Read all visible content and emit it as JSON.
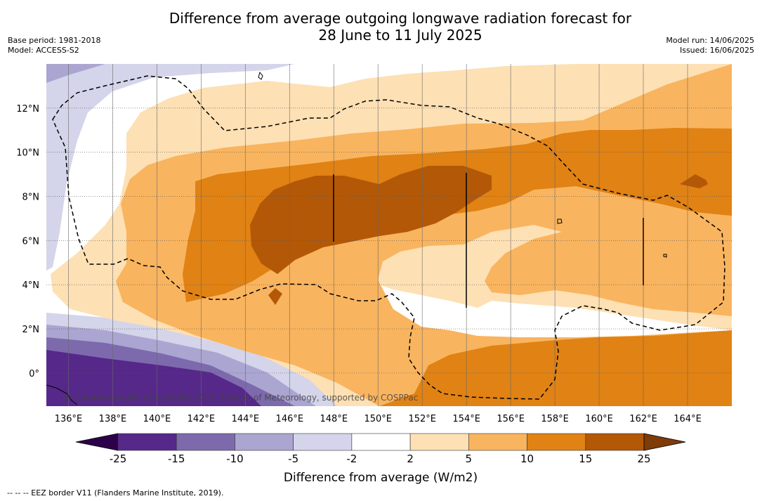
{
  "header": {
    "title_line1": "Difference from average outgoing longwave radiation forecast for",
    "title_line2": "28 June to 11 July 2025",
    "base_period": "Base period: 1981-2018",
    "model": "Model: ACCESS-S2",
    "model_run": "Model run: 14/06/2025",
    "issued": "Issued: 16/06/2025"
  },
  "map": {
    "lon_labels": [
      "136°E",
      "138°E",
      "140°E",
      "142°E",
      "144°E",
      "146°E",
      "148°E",
      "150°E",
      "152°E",
      "154°E",
      "156°E",
      "158°E",
      "160°E",
      "162°E",
      "164°E"
    ],
    "lat_labels": [
      "12°N",
      "10°N",
      "8°N",
      "6°N",
      "4°N",
      "2°N",
      "0°"
    ],
    "watermark": "© Commonwealth of Australia 2025, Bureau of Meteorology, supported by COSPPac"
  },
  "colorbar": {
    "label": "Difference from average (W/m2)",
    "ticks": [
      "-25",
      "-15",
      "-10",
      "-5",
      "-2",
      "2",
      "5",
      "10",
      "15",
      "25"
    ],
    "colors": [
      "#56288a",
      "#7d6aad",
      "#aba5d1",
      "#d4d4ea",
      "#ffffff",
      "#fde0b4",
      "#f9b45f",
      "#e08214",
      "#b35806"
    ],
    "under_color": "#2d004b",
    "over_color": "#7f3b08"
  },
  "footnote": "--  --  -- EEZ border V11 (Flanders Marine Institute, 2019)."
}
